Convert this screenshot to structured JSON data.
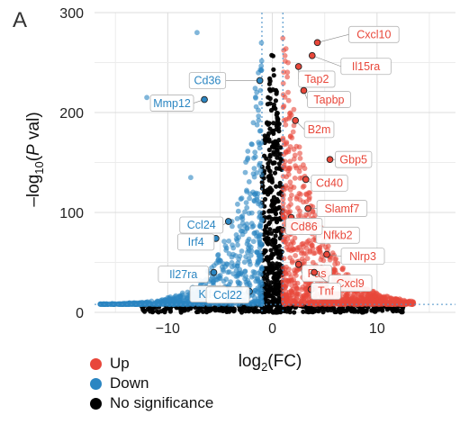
{
  "chart_data": {
    "type": "scatter",
    "panel_label": "A",
    "xlabel": "log2(FC)",
    "xlabel_parts": {
      "base": "log",
      "sub": "2",
      "rest": "(FC)"
    },
    "ylabel": "-log10(P val)",
    "ylabel_parts": {
      "prefix": "–log",
      "sub": "10",
      "open": "(",
      "italic": "P",
      "rest": " val)"
    },
    "xlim": [
      -17,
      17.5
    ],
    "ylim": [
      0,
      300
    ],
    "x_ticks": [
      -10,
      0,
      10
    ],
    "x_tick_labels": [
      "−10",
      "0",
      "10"
    ],
    "y_ticks": [
      0,
      100,
      200,
      300
    ],
    "y_tick_labels": [
      "0",
      "100",
      "200",
      "300"
    ],
    "grid": true,
    "threshold_lines": {
      "x": [
        -1,
        1
      ],
      "y": 8
    },
    "colors": {
      "up": "#e8473a",
      "down": "#2b86c2",
      "ns": "#000000",
      "threshold": "#4a90c8"
    },
    "legend": {
      "placement": "bottom-left",
      "items": [
        {
          "key": "up",
          "label": "Up",
          "color": "#e8473a"
        },
        {
          "key": "down",
          "label": "Down",
          "color": "#2b86c2"
        },
        {
          "key": "ns",
          "label": "No significance",
          "color": "#000000"
        }
      ]
    },
    "labeled_genes": [
      {
        "name": "Cxcl10",
        "group": "up",
        "x": 4.3,
        "y": 270
      },
      {
        "name": "Il15ra",
        "group": "up",
        "x": 3.8,
        "y": 257
      },
      {
        "name": "Tap2",
        "group": "up",
        "x": 2.5,
        "y": 246
      },
      {
        "name": "Tapbp",
        "group": "up",
        "x": 3.0,
        "y": 222
      },
      {
        "name": "B2m",
        "group": "up",
        "x": 2.2,
        "y": 192
      },
      {
        "name": "Gbp5",
        "group": "up",
        "x": 5.5,
        "y": 153
      },
      {
        "name": "Cd40",
        "group": "up",
        "x": 3.2,
        "y": 133
      },
      {
        "name": "Slamf7",
        "group": "up",
        "x": 3.4,
        "y": 104
      },
      {
        "name": "Nfkb2",
        "group": "up",
        "x": 3.5,
        "y": 88
      },
      {
        "name": "Cd86",
        "group": "up",
        "x": 1.8,
        "y": 95
      },
      {
        "name": "Fas",
        "group": "up",
        "x": 2.5,
        "y": 48
      },
      {
        "name": "Nlrp3",
        "group": "up",
        "x": 5.2,
        "y": 58
      },
      {
        "name": "Cxcl9",
        "group": "up",
        "x": 4.0,
        "y": 40
      },
      {
        "name": "Tnf",
        "group": "up",
        "x": 3.7,
        "y": 23
      },
      {
        "name": "Cd36",
        "group": "down",
        "x": -1.2,
        "y": 232
      },
      {
        "name": "Mmp12",
        "group": "down",
        "x": -6.5,
        "y": 213
      },
      {
        "name": "Ccl24",
        "group": "down",
        "x": -4.2,
        "y": 91
      },
      {
        "name": "Irf4",
        "group": "down",
        "x": -5.4,
        "y": 74
      },
      {
        "name": "Il27ra",
        "group": "down",
        "x": -5.6,
        "y": 40
      },
      {
        "name": "Klf4",
        "group": "down",
        "x": -4.4,
        "y": 22
      },
      {
        "name": "Ccl22",
        "group": "down",
        "x": -2.2,
        "y": 21
      }
    ],
    "random_seed": 12345
  }
}
